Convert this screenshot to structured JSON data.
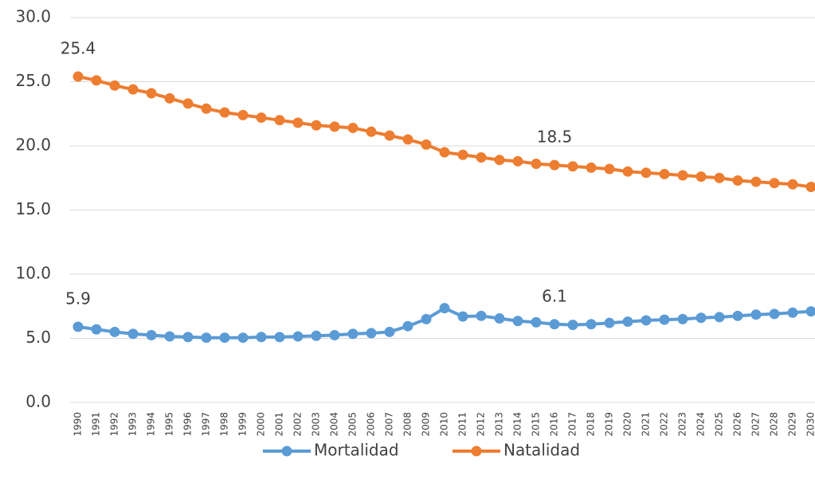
{
  "chart_data": {
    "type": "line",
    "categories": [
      "1990",
      "1991",
      "1992",
      "1993",
      "1994",
      "1995",
      "1996",
      "1997",
      "1998",
      "1999",
      "2000",
      "2001",
      "2002",
      "2003",
      "2004",
      "2005",
      "2006",
      "2007",
      "2008",
      "2009",
      "2010",
      "2011",
      "2012",
      "2013",
      "2014",
      "2015",
      "2016",
      "2017",
      "2018",
      "2019",
      "2020",
      "2021",
      "2022",
      "2023",
      "2024",
      "2025",
      "2026",
      "2027",
      "2028",
      "2029",
      "2030"
    ],
    "series": [
      {
        "name": "Mortalidad",
        "color": "#5b9bd5",
        "values": [
          5.9,
          5.7,
          5.5,
          5.35,
          5.25,
          5.15,
          5.1,
          5.05,
          5.05,
          5.05,
          5.1,
          5.1,
          5.15,
          5.2,
          5.25,
          5.35,
          5.4,
          5.5,
          5.95,
          6.5,
          7.35,
          6.7,
          6.75,
          6.55,
          6.35,
          6.25,
          6.1,
          6.05,
          6.1,
          6.2,
          6.3,
          6.4,
          6.45,
          6.5,
          6.6,
          6.65,
          6.75,
          6.85,
          6.9,
          7.0,
          7.1
        ],
        "value_labels": [
          "5.9",
          null,
          null,
          null,
          null,
          null,
          null,
          null,
          null,
          null,
          null,
          null,
          null,
          null,
          null,
          null,
          null,
          null,
          null,
          null,
          null,
          null,
          null,
          null,
          null,
          null,
          "6.1",
          null,
          null,
          null,
          null,
          null,
          null,
          null,
          null,
          null,
          null,
          null,
          null,
          null,
          null
        ]
      },
      {
        "name": "Natalidad",
        "color": "#ed7d31",
        "values": [
          25.4,
          25.1,
          24.7,
          24.4,
          24.1,
          23.7,
          23.3,
          22.9,
          22.6,
          22.4,
          22.2,
          22.0,
          21.8,
          21.6,
          21.5,
          21.4,
          21.1,
          20.8,
          20.5,
          20.1,
          19.5,
          19.3,
          19.1,
          18.9,
          18.8,
          18.6,
          18.5,
          18.4,
          18.3,
          18.2,
          18.0,
          17.9,
          17.8,
          17.7,
          17.6,
          17.5,
          17.3,
          17.2,
          17.1,
          17.0,
          16.8
        ],
        "value_labels": [
          "25.4",
          null,
          null,
          null,
          null,
          null,
          null,
          null,
          null,
          null,
          null,
          null,
          null,
          null,
          null,
          null,
          null,
          null,
          null,
          null,
          null,
          null,
          null,
          null,
          null,
          null,
          "18.5",
          null,
          null,
          null,
          null,
          null,
          null,
          null,
          null,
          null,
          null,
          null,
          null,
          null,
          null
        ]
      }
    ],
    "ylim": [
      0,
      30
    ],
    "yticks": [
      {
        "value": 0,
        "label": "0.0"
      },
      {
        "value": 5,
        "label": "5.0"
      },
      {
        "value": 10,
        "label": "10.0"
      },
      {
        "value": 15,
        "label": "15.0"
      },
      {
        "value": 20,
        "label": "20.0"
      },
      {
        "value": 25,
        "label": "25.0"
      },
      {
        "value": 30,
        "label": "30.0"
      }
    ],
    "grid": true,
    "legend": "bottom"
  }
}
